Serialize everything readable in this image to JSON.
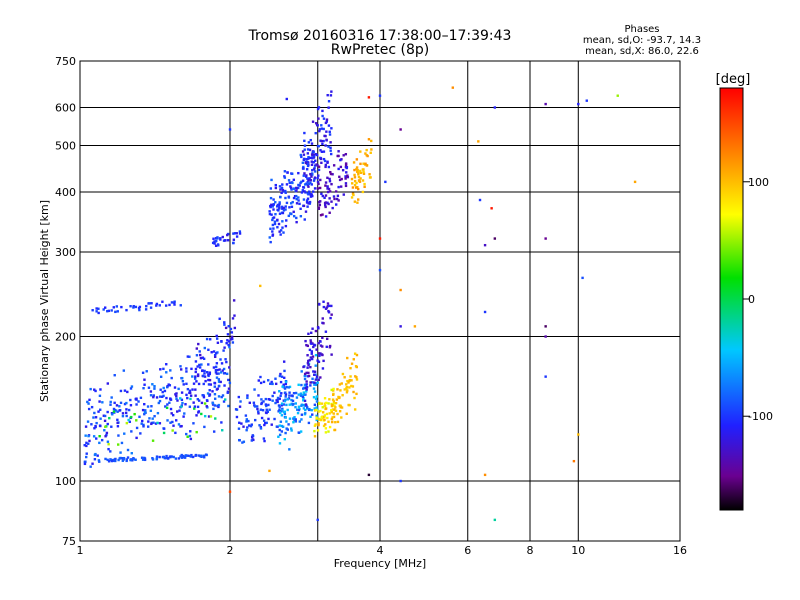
{
  "header": {
    "title_line1": "Tromsø 20160316 17:38:00–17:39:43",
    "title_line2": "RwPretec (8p)"
  },
  "phases": {
    "heading": "Phases",
    "line_o": "mean, sd,O: -93.7, 14.3",
    "line_x": "mean, sd,X: 86.0, 22.6"
  },
  "chart_data": {
    "type": "scatter",
    "xlabel": "Frequency [MHz]",
    "ylabel": "Stationary phase Virtual Height [km]",
    "x_scale": "log",
    "y_scale": "log",
    "xlim": [
      1,
      16
    ],
    "ylim": [
      75,
      750
    ],
    "x_ticks": [
      1,
      2,
      4,
      6,
      8,
      10,
      16
    ],
    "x_tick_labels": [
      "1",
      "2",
      "4",
      "6",
      "8",
      "10",
      "16"
    ],
    "y_ticks": [
      75,
      100,
      200,
      300,
      400,
      500,
      600,
      750
    ],
    "y_tick_labels": [
      "75",
      "100",
      "200",
      "300",
      "400",
      "500",
      "600",
      "750"
    ],
    "x_grid": [
      1,
      2,
      3,
      4,
      6,
      8,
      10,
      16
    ],
    "y_grid": [
      75,
      100,
      200,
      300,
      400,
      500,
      600,
      750
    ],
    "grid": true,
    "colorbar": {
      "label": "[deg]",
      "range": [
        -180,
        180
      ],
      "ticks": [
        100,
        0,
        -100
      ],
      "tick_labels": [
        "100",
        "0",
        "-100"
      ],
      "stops": [
        "#000000",
        "#6a0090",
        "#2020ff",
        "#00c8ff",
        "#00e000",
        "#ffff00",
        "#ff8000",
        "#ff0000"
      ],
      "stop_positions": [
        0,
        0.08,
        0.2,
        0.38,
        0.55,
        0.7,
        0.85,
        1
      ]
    },
    "point_groups": [
      {
        "x": [
          1.02,
          1.8
        ],
        "y": [
          110,
          113
        ],
        "phase": [
          -100,
          -80
        ],
        "count": 90,
        "spread_y": 0.008,
        "shape": "line"
      },
      {
        "x": [
          1.02,
          2.0
        ],
        "y": [
          116,
          180
        ],
        "phase": [
          -120,
          -70
        ],
        "count": 320,
        "spread_y": 0.11,
        "shape": "cloud"
      },
      {
        "x": [
          1.05,
          2.0
        ],
        "y": [
          120,
          150
        ],
        "phase": [
          -40,
          60
        ],
        "count": 30,
        "spread_y": 0.08,
        "shape": "cloud"
      },
      {
        "x": [
          1.7,
          2.05
        ],
        "y": [
          140,
          230
        ],
        "phase": [
          -130,
          -90
        ],
        "count": 80,
        "spread_y": 0.09,
        "shape": "cloud"
      },
      {
        "x": [
          1.85,
          2.1
        ],
        "y": [
          310,
          330
        ],
        "phase": [
          -120,
          -90
        ],
        "count": 30,
        "spread_y": 0.02,
        "shape": "cloud"
      },
      {
        "x": [
          2.05,
          2.6
        ],
        "y": [
          116,
          170
        ],
        "phase": [
          -120,
          -80
        ],
        "count": 120,
        "spread_y": 0.08,
        "shape": "cloud"
      },
      {
        "x": [
          2.5,
          3.0
        ],
        "y": [
          120,
          175
        ],
        "phase": [
          -100,
          -40
        ],
        "count": 140,
        "spread_y": 0.1,
        "shape": "cloud"
      },
      {
        "x": [
          2.8,
          3.2
        ],
        "y": [
          150,
          240
        ],
        "phase": [
          -140,
          -110
        ],
        "count": 90,
        "spread_y": 0.09,
        "shape": "cloud"
      },
      {
        "x": [
          2.95,
          3.25
        ],
        "y": [
          125,
          150
        ],
        "phase": [
          60,
          110
        ],
        "count": 60,
        "spread_y": 0.06,
        "shape": "cloud"
      },
      {
        "x": [
          3.2,
          3.6
        ],
        "y": [
          130,
          180
        ],
        "phase": [
          90,
          110
        ],
        "count": 70,
        "spread_y": 0.08,
        "shape": "cloud"
      },
      {
        "x": [
          2.4,
          2.95
        ],
        "y": [
          330,
          470
        ],
        "phase": [
          -120,
          -80
        ],
        "count": 180,
        "spread_y": 0.09,
        "shape": "cloud"
      },
      {
        "x": [
          2.8,
          3.2
        ],
        "y": [
          380,
          620
        ],
        "phase": [
          -130,
          -90
        ],
        "count": 120,
        "spread_y": 0.1,
        "shape": "cloud"
      },
      {
        "x": [
          3.0,
          3.45
        ],
        "y": [
          360,
          480
        ],
        "phase": [
          -150,
          -110
        ],
        "count": 80,
        "spread_y": 0.08,
        "shape": "cloud"
      },
      {
        "x": [
          3.5,
          3.85
        ],
        "y": [
          380,
          500
        ],
        "phase": [
          90,
          120
        ],
        "count": 60,
        "spread_y": 0.07,
        "shape": "cloud"
      },
      {
        "x": [
          1.05,
          1.6
        ],
        "y": [
          225,
          235
        ],
        "phase": [
          -110,
          -90
        ],
        "count": 40,
        "spread_y": 0.015,
        "shape": "line"
      }
    ],
    "sparse_points": [
      {
        "x": 6.35,
        "y": 385,
        "phase": -100
      },
      {
        "x": 6.7,
        "y": 370,
        "phase": 170
      },
      {
        "x": 6.5,
        "y": 310,
        "phase": -130
      },
      {
        "x": 6.8,
        "y": 320,
        "phase": -160
      },
      {
        "x": 8.6,
        "y": 320,
        "phase": -150
      },
      {
        "x": 4.4,
        "y": 250,
        "phase": 120
      },
      {
        "x": 4.0,
        "y": 275,
        "phase": -90
      },
      {
        "x": 4.4,
        "y": 210,
        "phase": -120
      },
      {
        "x": 4.7,
        "y": 210,
        "phase": 110
      },
      {
        "x": 6.5,
        "y": 225,
        "phase": -100
      },
      {
        "x": 8.6,
        "y": 210,
        "phase": -160
      },
      {
        "x": 8.6,
        "y": 200,
        "phase": -140
      },
      {
        "x": 8.6,
        "y": 165,
        "phase": -100
      },
      {
        "x": 10.0,
        "y": 125,
        "phase": 100
      },
      {
        "x": 9.8,
        "y": 110,
        "phase": 130
      },
      {
        "x": 3.8,
        "y": 103,
        "phase": -170
      },
      {
        "x": 4.4,
        "y": 100,
        "phase": -100
      },
      {
        "x": 6.5,
        "y": 103,
        "phase": 120
      },
      {
        "x": 6.8,
        "y": 83,
        "phase": -20
      },
      {
        "x": 3.0,
        "y": 83,
        "phase": -100
      },
      {
        "x": 2.0,
        "y": 95,
        "phase": 150
      },
      {
        "x": 2.4,
        "y": 105,
        "phase": 110
      },
      {
        "x": 6.3,
        "y": 510,
        "phase": 110
      },
      {
        "x": 6.8,
        "y": 600,
        "phase": -110
      },
      {
        "x": 8.6,
        "y": 610,
        "phase": -140
      },
      {
        "x": 10.0,
        "y": 610,
        "phase": -110
      },
      {
        "x": 10.4,
        "y": 620,
        "phase": -100
      },
      {
        "x": 12.0,
        "y": 635,
        "phase": 50
      },
      {
        "x": 13.0,
        "y": 420,
        "phase": 110
      },
      {
        "x": 5.6,
        "y": 660,
        "phase": 120
      },
      {
        "x": 4.4,
        "y": 540,
        "phase": -150
      },
      {
        "x": 4.0,
        "y": 320,
        "phase": 170
      },
      {
        "x": 4.1,
        "y": 420,
        "phase": -100
      },
      {
        "x": 10.2,
        "y": 265,
        "phase": -90
      },
      {
        "x": 2.6,
        "y": 625,
        "phase": -110
      },
      {
        "x": 3.8,
        "y": 630,
        "phase": 170
      },
      {
        "x": 4.0,
        "y": 635,
        "phase": -100
      },
      {
        "x": 2.0,
        "y": 540,
        "phase": -100
      },
      {
        "x": 2.3,
        "y": 255,
        "phase": 100
      }
    ]
  }
}
